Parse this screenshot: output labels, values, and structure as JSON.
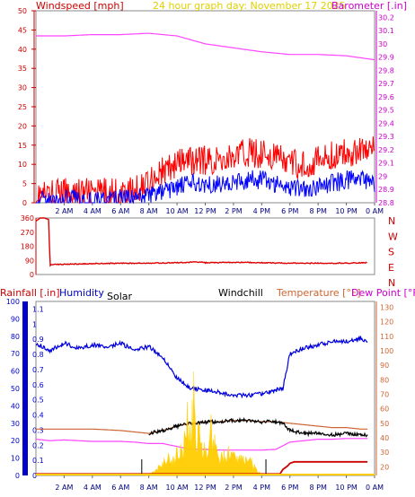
{
  "chart_data": [
    {
      "type": "line",
      "title": "24 hour graph day: November 17 2025",
      "left_axis": {
        "label": "Windspeed [mph]",
        "ylim": [
          0,
          50
        ],
        "ticks": [
          0,
          5,
          10,
          15,
          20,
          25,
          30,
          35,
          40,
          45,
          50
        ],
        "color": "#cc0000"
      },
      "right_axis": {
        "label": "Barometer [.in]",
        "ylim": [
          28.8,
          30.25
        ],
        "ticks": [
          "28.8",
          "28.9",
          "29",
          "29.1",
          "29.2",
          "29.3",
          "29.4",
          "29.5",
          "29.6",
          "29.7",
          "29.8",
          "29.9",
          "30",
          "30.1",
          "30.2"
        ],
        "color": "#cc00cc"
      },
      "x_labels": [
        "2 AM",
        "4 AM",
        "6 AM",
        "8 AM",
        "10 AM",
        "12 PM",
        "2 PM",
        "4 PM",
        "6 PM",
        "8 PM",
        "10 PM",
        "0 AM"
      ],
      "x_hours": [
        0,
        24
      ],
      "series": [
        {
          "color": "#ff0000",
          "axis": "left",
          "kind": "noisy",
          "x": [
            0,
            1,
            2,
            3,
            4,
            5,
            6,
            7,
            8,
            9,
            10,
            11,
            12,
            13,
            14,
            15,
            16,
            17,
            18,
            19,
            20,
            21,
            22,
            23,
            24
          ],
          "y": [
            2,
            2,
            2.5,
            2.5,
            2.5,
            2.5,
            2.5,
            3,
            6,
            8,
            10,
            11,
            11,
            11,
            12,
            13,
            13,
            12,
            10,
            10,
            11,
            12,
            13,
            14,
            14
          ],
          "spread": 4
        },
        {
          "color": "#0000ff",
          "axis": "left",
          "kind": "noisy",
          "x": [
            0,
            1,
            2,
            3,
            4,
            5,
            6,
            7,
            8,
            9,
            10,
            11,
            12,
            13,
            14,
            15,
            16,
            17,
            18,
            19,
            20,
            21,
            22,
            23,
            24
          ],
          "y": [
            0.5,
            0.5,
            1,
            1,
            0.5,
            1,
            1,
            1,
            2,
            3,
            4,
            5,
            5,
            5,
            5,
            6,
            6,
            5,
            4,
            4,
            4,
            5,
            6,
            6,
            5
          ],
          "spread": 2.5
        },
        {
          "color": "#ff44ff",
          "axis": "right",
          "kind": "line",
          "x": [
            0,
            2,
            4,
            6,
            8,
            10,
            11,
            12,
            14,
            16,
            17,
            18,
            20,
            22,
            24
          ],
          "y": [
            30.06,
            30.06,
            30.07,
            30.07,
            30.08,
            30.06,
            30.03,
            30.0,
            29.97,
            29.94,
            29.93,
            29.92,
            29.92,
            29.91,
            29.88
          ]
        }
      ]
    },
    {
      "type": "line",
      "left_axis": {
        "ylim": [
          0,
          360
        ],
        "ticks": [
          "0",
          "90",
          "180",
          "270",
          "360"
        ]
      },
      "right_labels": [
        "N",
        "W",
        "S",
        "E",
        "N"
      ],
      "series": [
        {
          "color": "#dd0000",
          "kind": "line",
          "x": [
            0,
            0.3,
            0.6,
            0.9,
            1.0,
            1.1,
            2,
            4,
            6,
            8,
            10,
            11.5,
            12,
            14,
            16,
            18,
            20,
            22,
            23.5
          ],
          "y": [
            340,
            360,
            360,
            350,
            55,
            65,
            65,
            70,
            72,
            72,
            75,
            80,
            75,
            78,
            75,
            72,
            72,
            73,
            75
          ],
          "spread": 3
        }
      ]
    },
    {
      "type": "line",
      "labels": {
        "rain": "Rainfall [.in]",
        "humidity": "Humidity",
        "solar": "Solar",
        "windchill": "Windchill",
        "temperature": "Temperature [°F]",
        "dewpoint": "Dew Point [°F]"
      },
      "humidity_axis": {
        "ylim": [
          0,
          100
        ],
        "ticks": [
          "0",
          "10",
          "20",
          "30",
          "40",
          "50",
          "60",
          "70",
          "80",
          "90",
          "100"
        ]
      },
      "rain_axis": {
        "ylim": [
          0,
          1.15
        ],
        "ticks": [
          "0",
          "0.1",
          "0.2",
          "0.3",
          "0.4",
          "0.5",
          "0.6",
          "0.7",
          "0.8",
          "0.9",
          "1",
          "1.1"
        ]
      },
      "temp_axis": {
        "ylim": [
          14,
          134
        ],
        "ticks": [
          "20",
          "30",
          "40",
          "50",
          "60",
          "70",
          "80",
          "90",
          "100",
          "110",
          "120",
          "130"
        ]
      },
      "series": [
        {
          "name": "Humidity",
          "color": "#0000dd",
          "axis": "humidity",
          "kind": "line",
          "x": [
            0,
            1,
            2,
            3,
            4,
            5,
            6,
            7,
            8,
            9,
            10,
            11,
            12,
            13,
            14,
            15,
            16,
            17,
            17.5,
            18,
            19,
            20,
            21,
            22,
            23,
            23.5
          ],
          "y": [
            76,
            72,
            76,
            73,
            75,
            74,
            76,
            72,
            74,
            68,
            56,
            50,
            49,
            48,
            46,
            46,
            47,
            49,
            50,
            70,
            73,
            75,
            77,
            77,
            79,
            77
          ],
          "spread": 1.2
        },
        {
          "name": "Temperature [°F]",
          "color": "#cc6633",
          "axis": "temp",
          "kind": "line",
          "x": [
            0,
            2,
            4,
            6,
            8,
            9,
            10,
            11,
            12,
            13,
            14,
            15,
            16,
            17,
            18,
            19,
            20,
            21,
            22,
            23,
            23.5
          ],
          "y": [
            46,
            46,
            46,
            45,
            43,
            45,
            48,
            50,
            51,
            51,
            52,
            52,
            51,
            51,
            50,
            49,
            48,
            47,
            47,
            46,
            46
          ]
        },
        {
          "name": "Windchill",
          "color": "#000000",
          "axis": "temp",
          "kind": "line",
          "x": [
            8,
            9,
            10,
            11,
            12,
            13,
            14,
            15,
            16,
            17,
            17.5,
            18,
            19,
            20,
            21,
            22,
            23,
            23.5
          ],
          "y": [
            43,
            45,
            48,
            50,
            51,
            51,
            52,
            52,
            51,
            51,
            50,
            45,
            43,
            43,
            42,
            43,
            42,
            42
          ],
          "spread": 1.2
        },
        {
          "name": "Dew Point [°F]",
          "color": "#ff44ff",
          "axis": "temp",
          "kind": "line",
          "x": [
            0,
            1,
            2,
            3,
            4,
            5,
            6,
            7,
            8,
            9,
            10,
            11,
            12,
            13,
            14,
            15,
            16,
            17,
            18,
            19,
            20,
            21,
            22,
            23,
            23.5
          ],
          "y": [
            39,
            38,
            38.5,
            38,
            37.5,
            37.5,
            37.5,
            37,
            36,
            36,
            34,
            32,
            32,
            31.5,
            31.5,
            31.5,
            31.5,
            32,
            37,
            38,
            39,
            39,
            39.5,
            39.5,
            39.5
          ]
        },
        {
          "name": "Solar",
          "color": "#ffcc00",
          "axis": "humidity",
          "kind": "area",
          "x": [
            7.8,
            8.3,
            8.8,
            9.2,
            9.5,
            9.8,
            10.1,
            10.4,
            10.7,
            11.0,
            11.2,
            11.4,
            11.6,
            11.8,
            12.1,
            12.4,
            12.8,
            13.2,
            13.8,
            14.5,
            15.2,
            15.6,
            16.0
          ],
          "y": [
            0,
            2,
            5,
            8,
            11,
            8,
            15,
            12,
            30,
            25,
            45,
            18,
            28,
            15,
            12,
            25,
            12,
            11,
            12,
            10,
            8,
            4,
            0
          ]
        },
        {
          "name": "Rainfall [.in]",
          "color": "#cc0000",
          "axis": "rain",
          "kind": "step",
          "x": [
            0,
            17.3,
            17.5,
            17.8,
            18.0,
            18.3,
            18.8,
            23.5
          ],
          "y": [
            0.01,
            0.01,
            0.04,
            0.06,
            0.08,
            0.09,
            0.09,
            0.09
          ]
        }
      ],
      "markers": [
        7.5,
        16.3
      ]
    }
  ]
}
